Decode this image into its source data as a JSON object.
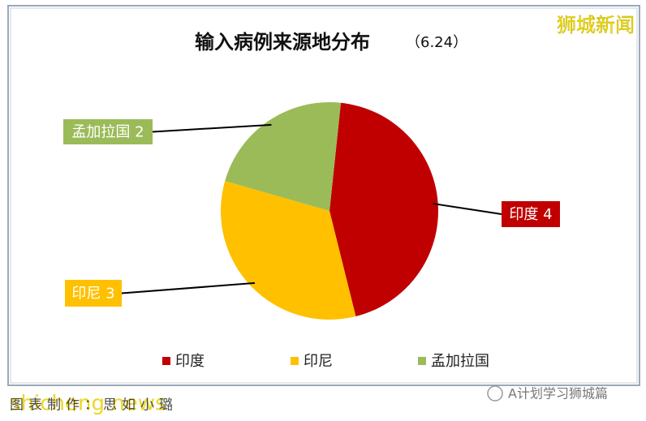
{
  "chart_data": {
    "type": "pie",
    "title": "输入病例来源地分布",
    "subtitle": "（6.24）",
    "categories": [
      "印度",
      "印尼",
      "孟加拉国"
    ],
    "values": [
      4,
      3,
      2
    ],
    "value_labels": [
      "印度 4",
      "印尼 3",
      "孟加拉国 2"
    ],
    "colors": [
      "#c00000",
      "#ffc000",
      "#9bbb59"
    ],
    "legend": "bottom"
  },
  "watermarks": {
    "top_right": "狮城新闻",
    "bottom_left": "shicheng.news",
    "bottom_right": "A计划学习狮城篇",
    "caption": "图表制作：思如小璐"
  }
}
